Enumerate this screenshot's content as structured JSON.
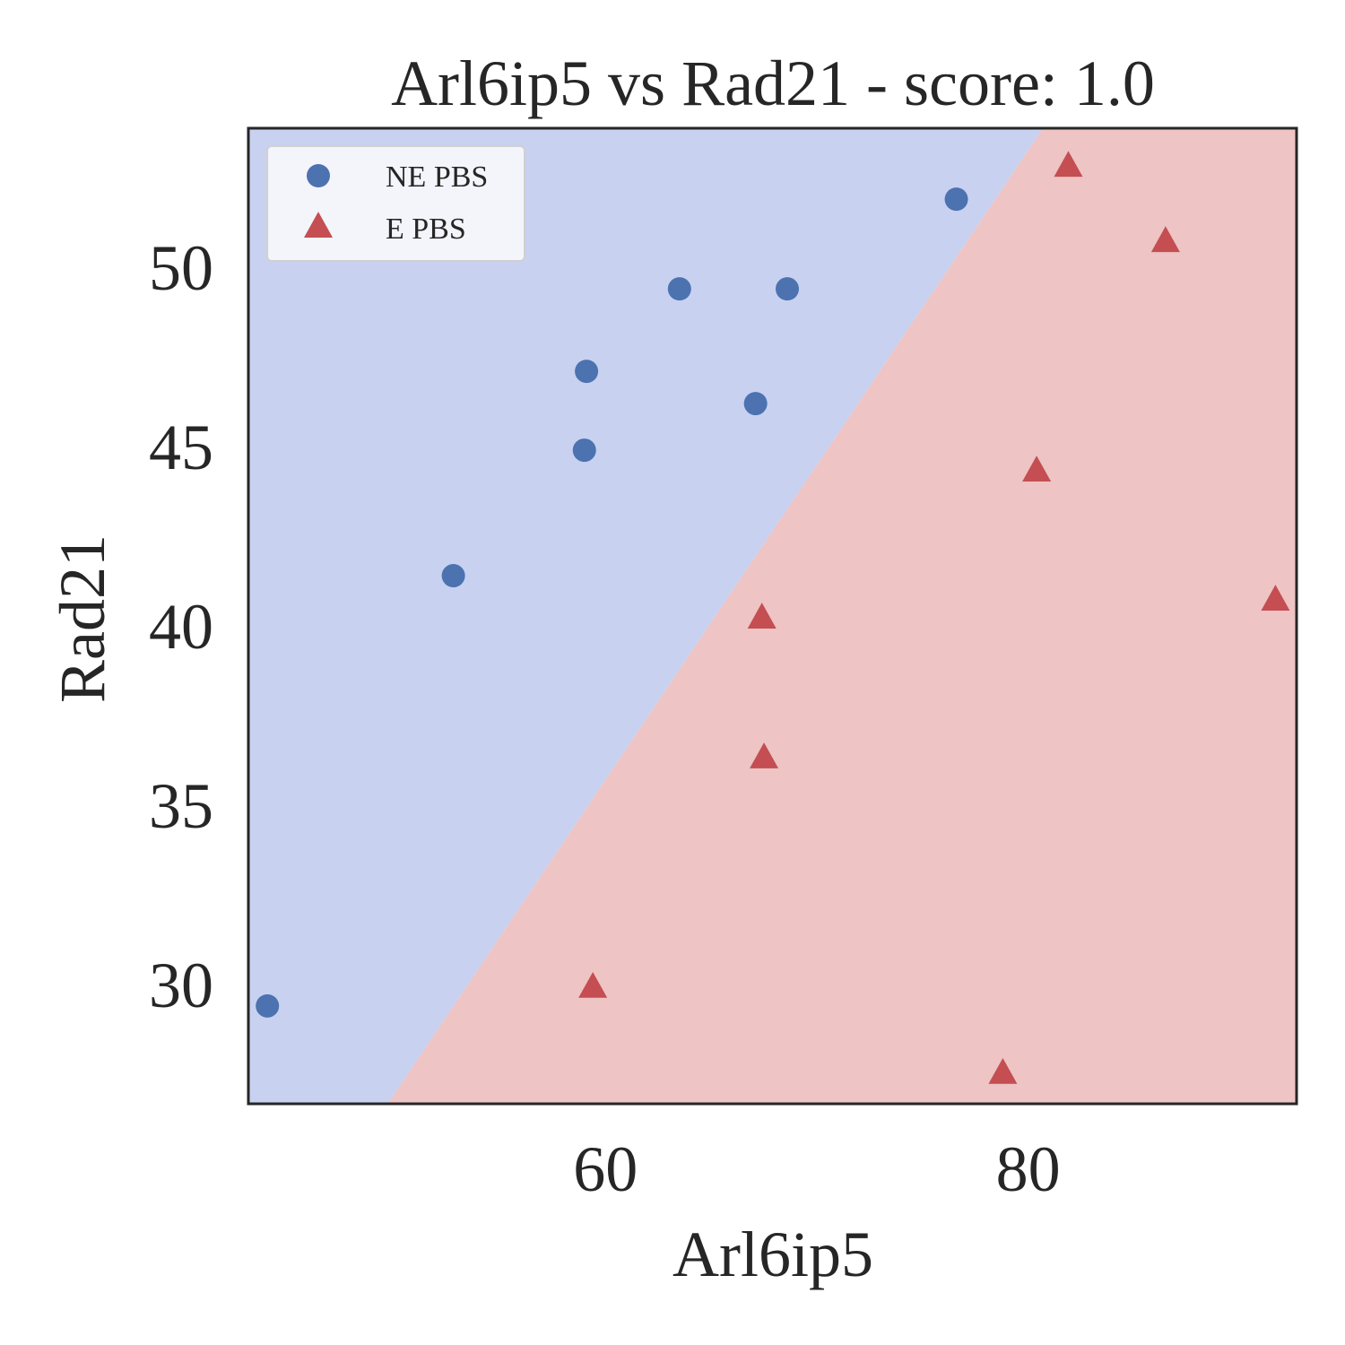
{
  "chart_data": {
    "type": "scatter",
    "title": "Arl6ip5 vs Rad21 - score: 1.0",
    "xlabel": "Arl6ip5",
    "ylabel": "Rad21",
    "xlim": [
      43.1,
      92.7
    ],
    "ylim": [
      26.67,
      53.88
    ],
    "xticks": [
      60,
      80
    ],
    "yticks": [
      30,
      35,
      40,
      45,
      50
    ],
    "grid": false,
    "legend_position": "top-left",
    "decision_boundary": {
      "points": [
        [
          49.7,
          26.67
        ],
        [
          80.7,
          53.88
        ]
      ],
      "regions": [
        "NE PBS",
        "E PBS"
      ],
      "region_colors": [
        "#c8d1f0",
        "#eec4c4"
      ]
    },
    "series": [
      {
        "name": "NE PBS",
        "marker": "circle",
        "color": "#4c72b0",
        "points": [
          [
            44.0,
            29.4
          ],
          [
            52.8,
            41.4
          ],
          [
            59.0,
            44.9
          ],
          [
            59.1,
            47.1
          ],
          [
            63.5,
            49.4
          ],
          [
            67.1,
            46.2
          ],
          [
            68.6,
            49.4
          ],
          [
            76.6,
            51.9
          ]
        ]
      },
      {
        "name": "E PBS",
        "marker": "triangle",
        "color": "#c44e52",
        "points": [
          [
            59.4,
            29.9
          ],
          [
            67.4,
            40.2
          ],
          [
            67.5,
            36.3
          ],
          [
            78.8,
            27.5
          ],
          [
            80.4,
            44.3
          ],
          [
            81.9,
            52.8
          ],
          [
            86.5,
            50.7
          ],
          [
            91.7,
            40.7
          ]
        ]
      }
    ]
  }
}
